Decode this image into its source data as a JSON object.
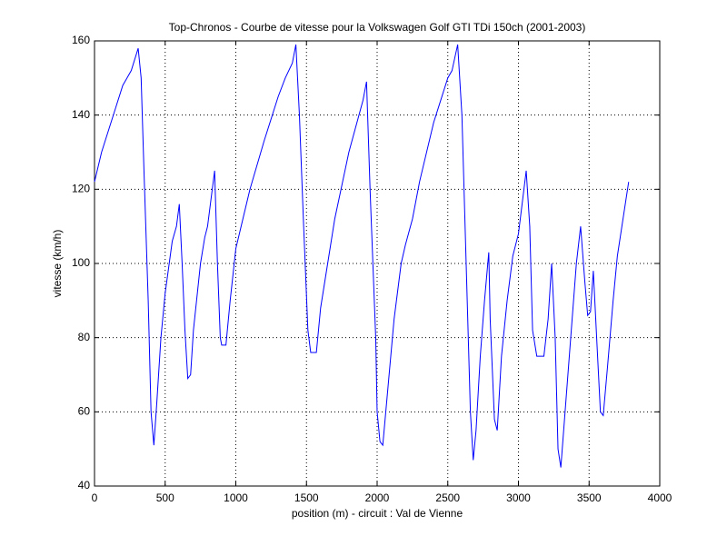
{
  "chart_data": {
    "type": "line",
    "title": "Top-Chronos - Courbe de vitesse pour la Volkswagen Golf GTI TDi 150ch (2001-2003)",
    "x_label": "position (m) - circuit : Val de Vienne",
    "y_label": "vitesse (km/h)",
    "xlim": [
      0,
      4000
    ],
    "ylim": [
      40,
      160
    ],
    "xticks": [
      0,
      500,
      1000,
      1500,
      2000,
      2500,
      3000,
      3500,
      4000
    ],
    "yticks": [
      40,
      60,
      80,
      100,
      120,
      140,
      160
    ],
    "grid": true,
    "series": [
      {
        "name": "vitesse",
        "color": "#0000ff",
        "x": [
          0,
          50,
          100,
          150,
          200,
          230,
          260,
          309,
          330,
          350,
          380,
          400,
          420,
          440,
          470,
          500,
          550,
          580,
          600,
          620,
          640,
          660,
          680,
          700,
          750,
          780,
          800,
          850,
          870,
          890,
          900,
          930,
          960,
          1000,
          1050,
          1100,
          1200,
          1300,
          1350,
          1400,
          1425,
          1450,
          1480,
          1510,
          1530,
          1570,
          1600,
          1650,
          1700,
          1800,
          1900,
          1925,
          1950,
          1990,
          2000,
          2020,
          2040,
          2080,
          2120,
          2170,
          2200,
          2250,
          2300,
          2400,
          2500,
          2530,
          2570,
          2600,
          2630,
          2660,
          2680,
          2700,
          2730,
          2760,
          2790,
          2800,
          2830,
          2850,
          2880,
          2920,
          2960,
          3000,
          3055,
          3080,
          3100,
          3130,
          3180,
          3210,
          3235,
          3260,
          3280,
          3300,
          3330,
          3370,
          3410,
          3440,
          3470,
          3490,
          3510,
          3530,
          3560,
          3580,
          3600,
          3630,
          3670,
          3700,
          3720,
          3760,
          3780
        ],
        "values": [
          122,
          130,
          136,
          142,
          148,
          150,
          152,
          158,
          150,
          125,
          90,
          60,
          51,
          62,
          80,
          92,
          106,
          110,
          116,
          100,
          82,
          69,
          70,
          82,
          100,
          107,
          110,
          125,
          100,
          80,
          78,
          78,
          90,
          104,
          112,
          120,
          133,
          145,
          150,
          154,
          159,
          140,
          110,
          82,
          76,
          76,
          88,
          100,
          112,
          130,
          144,
          149,
          120,
          80,
          60,
          52,
          51,
          68,
          85,
          100,
          105,
          112,
          122,
          138,
          150,
          152,
          159,
          140,
          100,
          60,
          47,
          55,
          75,
          90,
          103,
          85,
          58,
          55,
          75,
          90,
          102,
          108,
          125,
          110,
          82,
          75,
          75,
          85,
          100,
          80,
          50,
          45,
          60,
          80,
          100,
          110,
          95,
          86,
          87,
          98,
          75,
          60,
          59,
          72,
          90,
          102,
          107,
          117,
          122
        ]
      }
    ]
  }
}
